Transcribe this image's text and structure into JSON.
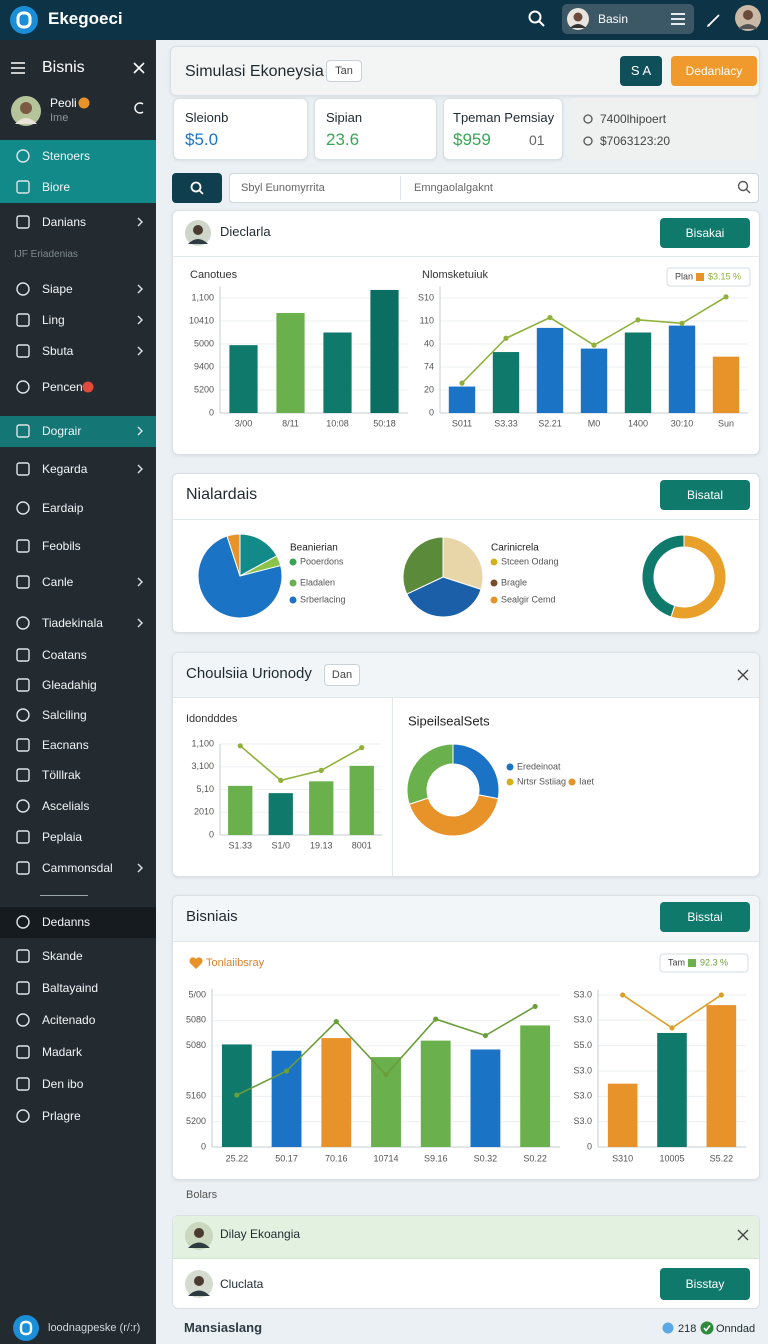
{
  "topbar": {
    "brand": "Ekegoeci",
    "user": "Basin"
  },
  "sidebar": {
    "title": "Bisnis",
    "profile_name": "Peoli",
    "profile_sub": "Ime",
    "section": "IJF Eriadenias",
    "footer": "loodnagpeske (r/:r)",
    "items": [
      "Stenoers",
      "Biore",
      "Danians",
      "Siape",
      "Ling",
      "Sbuta",
      "Pencen",
      "Dograir",
      "Kegarda",
      "Eardaip",
      "Feobils",
      "Canle",
      "Tiadekinala",
      "Coatans",
      "Gleadahig",
      "Salciling",
      "Eacnans",
      "Tölllrak",
      "Ascelials",
      "Peplaia",
      "Cammonsdal",
      "Dedanns",
      "Skande",
      "Baltayaind",
      "Acitenado",
      "Madark",
      "Den ibo",
      "Prlagre"
    ]
  },
  "header": {
    "title": "Simulasi Ekoneysia",
    "tag": "Tan",
    "button_primary": "S A",
    "button_secondary": "Dedanlacy"
  },
  "stats": [
    {
      "label": "Sleionb",
      "value": "$5.0"
    },
    {
      "label": "Sipian",
      "value": "23.6"
    },
    {
      "label": "Tpeman Pemsiay",
      "value": "$959",
      "extra": "01"
    }
  ],
  "stat_side": [
    "7400lhipoert",
    "$7063123:20"
  ],
  "search": {
    "placeholder": "Sbyl Eunomyrrita",
    "filter": "Emngaolalgaknt"
  },
  "cards": [
    {
      "title": "Dieclarla",
      "button": "Bisakai"
    },
    {
      "title": "Nialardais",
      "button": "Bisatal"
    },
    {
      "title": "Choulsiia Urionody",
      "tag": "Dan"
    },
    {
      "title": "Bisniais",
      "button": "Bisstai"
    }
  ],
  "footnote": "Bolars",
  "notice": {
    "title": "Dilay Ekoangia"
  },
  "row": {
    "title": "Cluclata",
    "button": "Bisstay"
  },
  "bottom": {
    "title": "Mansiaslang",
    "count": "218",
    "status": "Onndad"
  },
  "chart_data": [
    {
      "type": "bar",
      "title": "Canotues",
      "categories": [
        "3/00",
        "8/11",
        "10:08",
        "50:18"
      ],
      "series": [
        {
          "values": [
            59,
            87,
            70,
            107
          ],
          "colors": [
            "#0f7a6c",
            "#6ab04c",
            "#0f7a6c",
            "#0b6e62"
          ]
        }
      ],
      "ylim": [
        0,
        110
      ],
      "yticks": [
        0,
        {
          "value": 20,
          "label": "5200"
        },
        {
          "value": 40,
          "label": "9400"
        },
        {
          "value": 60,
          "label": "5000"
        },
        {
          "value": 80,
          "label": "10410"
        },
        {
          "value": 100,
          "label": "1,100"
        }
      ],
      "grid": true
    },
    {
      "type": "bar",
      "title": "Nlomsketuiuk",
      "categories": [
        "S011",
        "S3.33",
        "S2.21",
        "M0",
        "1400",
        "30:10",
        "Sun"
      ],
      "series": [
        {
          "name": "Plan",
          "color": "#e8922a",
          "values": [
            23,
            53,
            74,
            56,
            70,
            76,
            49
          ],
          "colors": [
            "#1a73c4",
            "#0f7a6c",
            "#1a73c4",
            "#1a73c4",
            "#0f7a6c",
            "#1a73c4",
            "#e8922a"
          ]
        },
        {
          "name": "$3.15 %",
          "type": "line",
          "color": "#8fb13a",
          "values": [
            26,
            65,
            83,
            59,
            81,
            78,
            101
          ]
        }
      ],
      "ylim": [
        0,
        110
      ],
      "yticks": [
        0,
        20,
        {
          "value": 40,
          "label": "74"
        },
        {
          "value": 60,
          "label": "40"
        },
        {
          "value": 80,
          "label": "110"
        },
        {
          "value": 100,
          "label": "S10"
        }
      ],
      "grid": true
    },
    {
      "type": "pie",
      "title": "Beanierian",
      "values": [
        17,
        4,
        74,
        5
      ],
      "colors": [
        "#138a8a",
        "#8bc34a",
        "#1a73c4",
        "#e8922a"
      ],
      "legend": [
        {
          "name": "Pooerdons",
          "color": "#3aa655"
        },
        {
          "name": "Eladalen",
          "color": "#6ab04c"
        },
        {
          "name": "Srberlacing",
          "color": "#1a73c4"
        }
      ]
    },
    {
      "type": "pie",
      "title": "Carinicrela",
      "values": [
        30,
        38,
        32
      ],
      "colors": [
        "#e8d5a8",
        "#1a5fa8",
        "#5a8a3a"
      ],
      "legend": [
        {
          "name": "Stceen Odang",
          "color": "#d4b020"
        },
        {
          "name": "Bragle",
          "color": "#7a4a2a"
        },
        {
          "name": "Sealgir Cemd",
          "color": "#e8922a"
        }
      ]
    },
    {
      "type": "donut",
      "values": [
        55,
        45
      ],
      "colors": [
        "#e8a02a",
        "#0f7a6c"
      ]
    },
    {
      "type": "bar",
      "title": "Idondddes",
      "categories": [
        "S1.33",
        "S1/0",
        "19.13",
        "8001"
      ],
      "series": [
        {
          "values": [
            54,
            46,
            59,
            76
          ],
          "colors": [
            "#6ab04c",
            "#0f7a6c",
            "#6ab04c",
            "#6ab04c"
          ]
        },
        {
          "type": "line",
          "color": "#8fb13a",
          "values": [
            98,
            60,
            71,
            96
          ]
        }
      ],
      "ylim": [
        0,
        100
      ],
      "yticks": [
        0,
        {
          "value": 25,
          "label": "2010"
        },
        {
          "value": 50,
          "label": "5,10"
        },
        {
          "value": 75,
          "label": "3,100"
        },
        {
          "value": 100,
          "label": "1,100"
        }
      ],
      "grid": true
    },
    {
      "type": "donut",
      "title": "SipeilsealSets",
      "values": [
        28,
        42,
        30
      ],
      "colors": [
        "#1a73c4",
        "#e8922a",
        "#6ab04c"
      ],
      "legend": [
        {
          "name": "Eredeinoat",
          "color": "#1a73c4"
        },
        {
          "name": "Nrtsr Sstiiag",
          "color": "#d4b020"
        },
        {
          "name": "Iaet",
          "color": "#e8922a"
        }
      ]
    },
    {
      "type": "bar",
      "title": "Tonlaiibsray",
      "categories": [
        "25.22",
        "50.17",
        "70.16",
        "10714",
        "S9.16",
        "S0.32",
        "S0.22"
      ],
      "series": [
        {
          "name": "Tam",
          "color": "#6ab04c",
          "values": [
            81,
            76,
            86,
            71,
            84,
            77,
            96
          ],
          "colors": [
            "#0f7a6c",
            "#1a73c4",
            "#e8922a",
            "#6ab04c",
            "#6ab04c",
            "#1a73c4",
            "#6ab04c"
          ]
        },
        {
          "name": "92.3 %",
          "type": "line",
          "color": "#6a9e3a",
          "values": [
            41,
            60,
            99,
            57,
            101,
            88,
            111
          ]
        }
      ],
      "ylim": [
        0,
        125
      ],
      "yticks": [
        0,
        {
          "value": 20,
          "label": "5200"
        },
        {
          "value": 40,
          "label": "5160"
        },
        {
          "value": 80,
          "label": "5080"
        },
        {
          "value": 100,
          "label": "5080"
        },
        {
          "value": 120,
          "label": "5/00"
        }
      ],
      "grid": true
    },
    {
      "type": "bar",
      "categories": [
        "S310",
        "10005",
        "S5.22"
      ],
      "series": [
        {
          "values": [
            2.5,
            4.5,
            5.6
          ],
          "colors": [
            "#e8922a",
            "#0f7a6c",
            "#e8922a"
          ]
        },
        {
          "type": "line",
          "color": "#d9a02a",
          "values": [
            6,
            4.7,
            6
          ]
        }
      ],
      "ylim": [
        0,
        6.2
      ],
      "yticks": [
        0,
        {
          "value": 1,
          "label": "S3.0"
        },
        {
          "value": 2,
          "label": "S3.0"
        },
        {
          "value": 3,
          "label": "S3.0"
        },
        {
          "value": 4,
          "label": "S5.0"
        },
        {
          "value": 5,
          "label": "S3.0"
        },
        {
          "value": 6,
          "label": "S3.0"
        }
      ],
      "grid": true
    }
  ]
}
